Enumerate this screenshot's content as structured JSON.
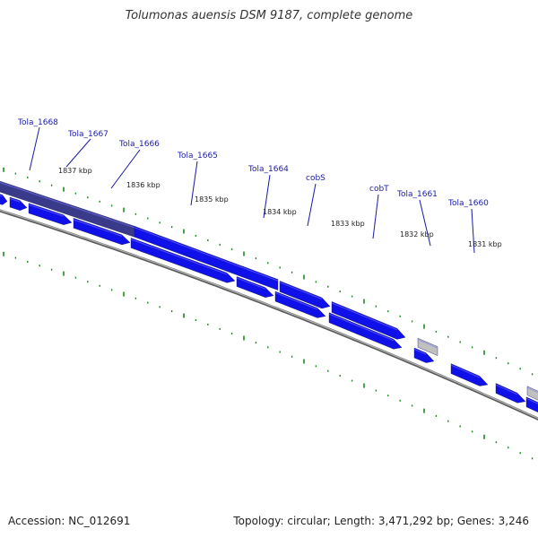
{
  "title": "Tolumonas auensis DSM 9187, complete genome",
  "footer": {
    "accession": "Accession: NC_012691",
    "summary": "Topology: circular; Length: 3,471,292 bp; Genes: 3,246"
  },
  "colors": {
    "gene_forward": "#1010e8",
    "gene_highlight": "#3a3a8a",
    "gene_grey": "#c0c0c0",
    "backbone": "#7a7a7a",
    "ticks": "#1a8a1a",
    "label_text": "#1a1aa6",
    "leader_line": "#1a1aa6"
  },
  "gene_labels": [
    "Tola_1668",
    "Tola_1667",
    "Tola_1666",
    "Tola_1665",
    "Tola_1664",
    "cobS",
    "cobT",
    "Tola_1661",
    "Tola_1660"
  ],
  "kbp_labels": [
    "1837 kbp",
    "1836 kbp",
    "1835 kbp",
    "1834 kbp",
    "1833 kbp",
    "1832 kbp",
    "1831 kbp"
  ]
}
